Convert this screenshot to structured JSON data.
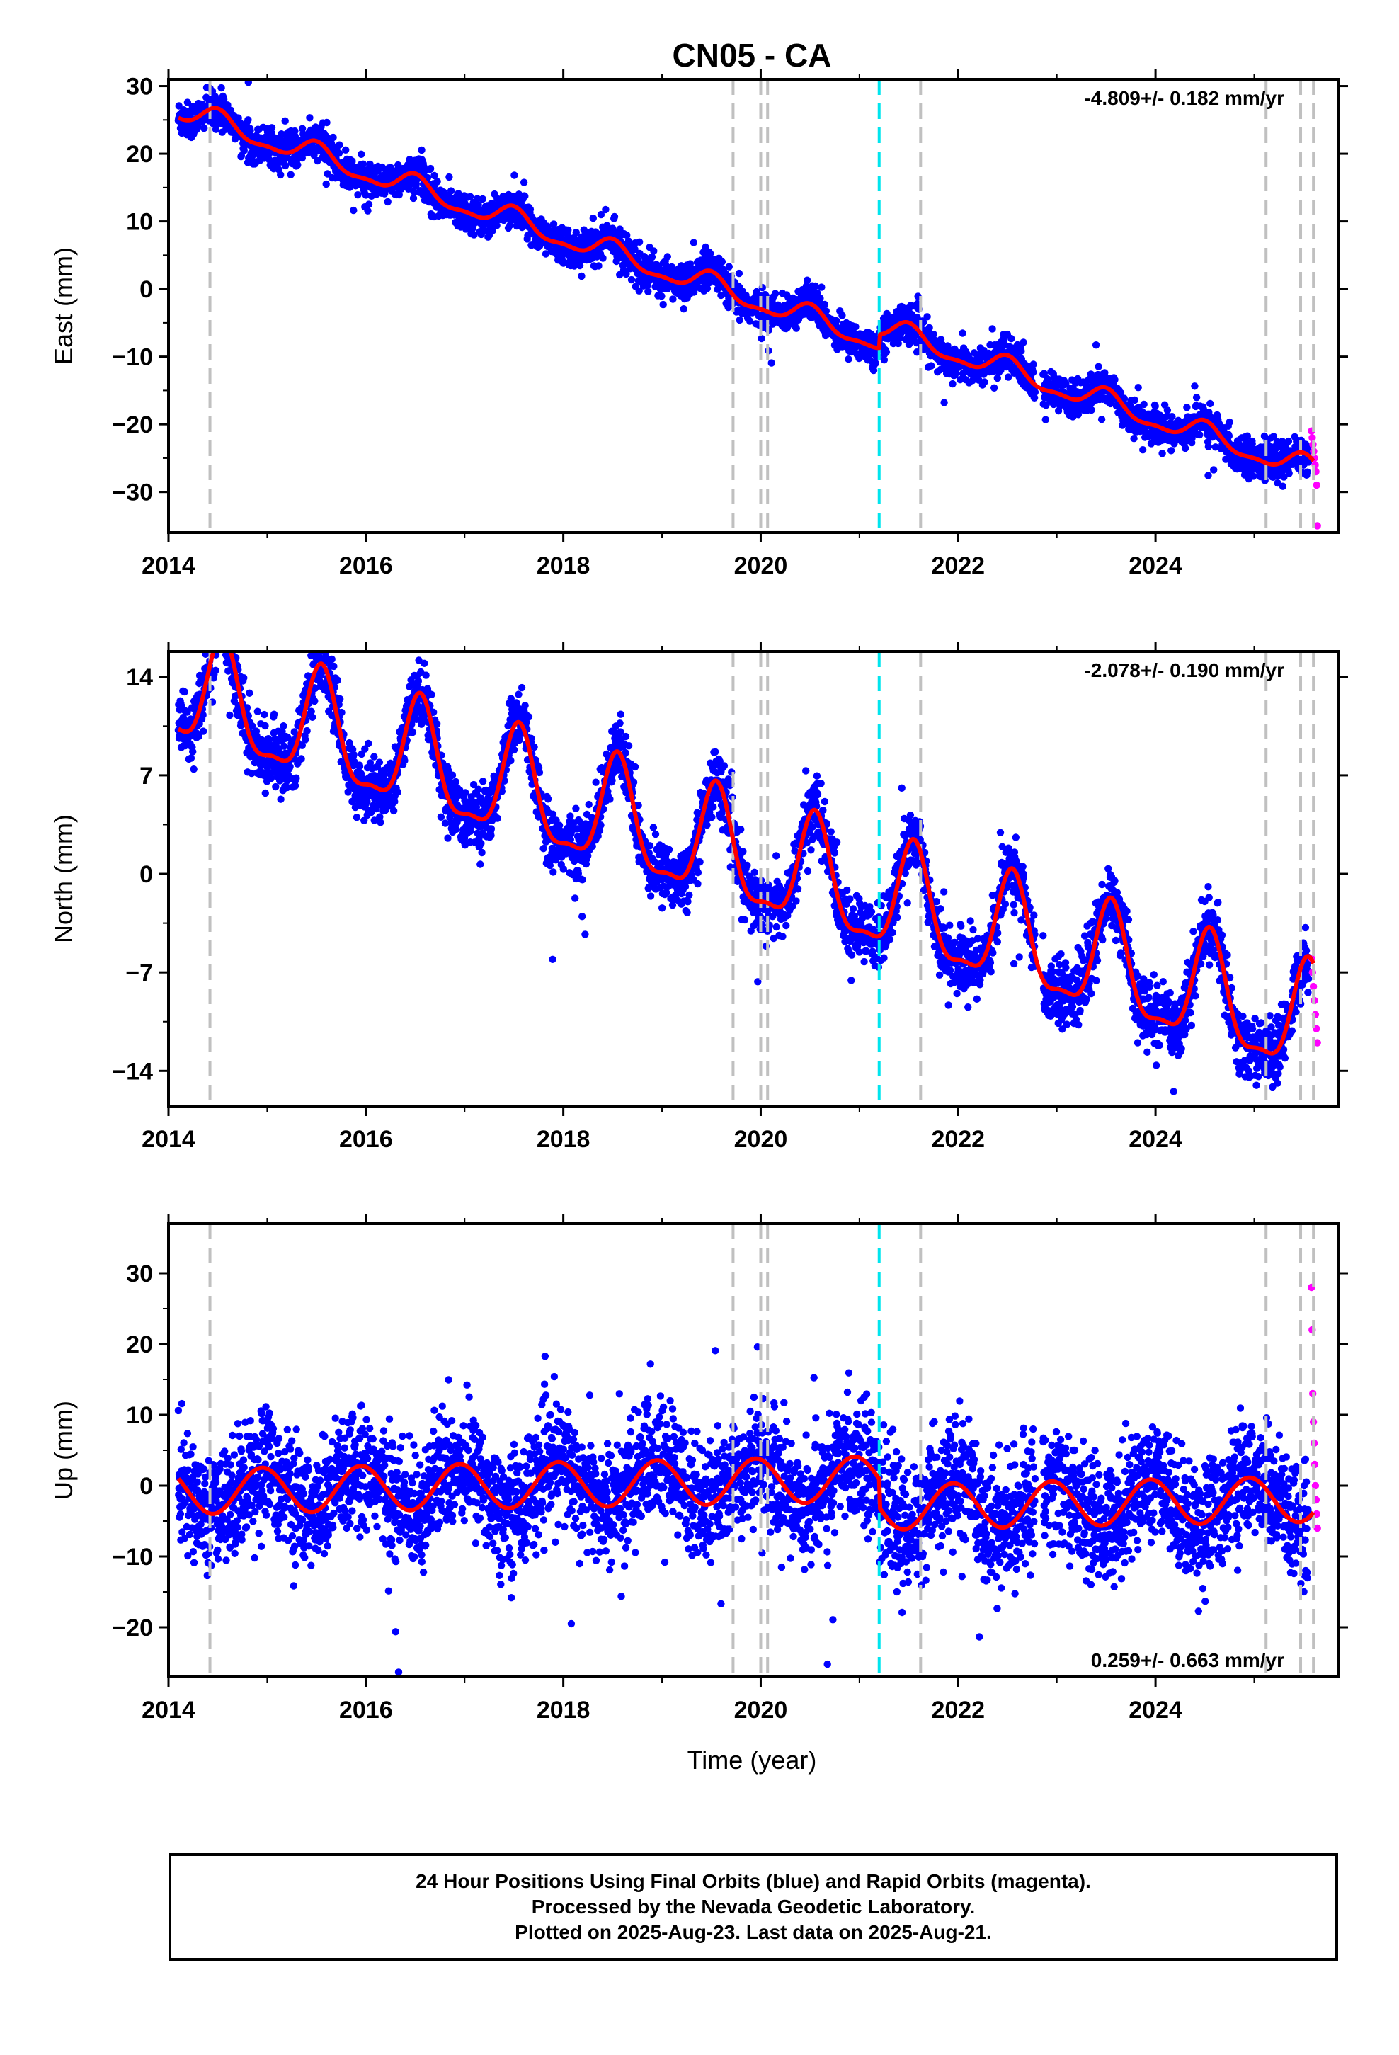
{
  "title": "CN05 - CA",
  "xlabel": "Time (year)",
  "footer": {
    "line1": "24 Hour Positions Using Final Orbits (blue) and Rapid Orbits (magenta).",
    "line2": "Processed by the Nevada Geodetic Laboratory.",
    "line3": "Plotted on 2025-Aug-23. Last data on 2025-Aug-21."
  },
  "colors": {
    "final_orbits": "#0000ff",
    "rapid_orbits": "#ff00ff",
    "model_fit": "#ff0000",
    "equipment_change": "#c0c0c0",
    "earthquake": "#00e5ee"
  },
  "chart_data": [
    {
      "type": "scatter",
      "component": "east",
      "ylabel": "East (mm)",
      "rate_text": "-4.809+/- 0.182 mm/yr",
      "xlim": [
        2014.0,
        2025.85
      ],
      "ylim": [
        -36,
        31
      ],
      "yticks": [
        30,
        20,
        10,
        0,
        -10,
        -20,
        -30
      ],
      "xticks": [
        2014,
        2016,
        2018,
        2020,
        2022,
        2024
      ],
      "xtick_labels": [
        "2014",
        "2016",
        "2018",
        "2020",
        "2022",
        "2024"
      ],
      "model": {
        "start": 2014.1,
        "end": 2025.6,
        "slope": -4.809,
        "ref_year": 2014.1,
        "ref_value": 25.3,
        "annual_amp": 1.6,
        "annual_phase_year": 2014.5,
        "semiannual_amp": 0.6,
        "offsets": [
          {
            "year": 2021.2,
            "value": 2.0
          }
        ]
      },
      "scatter_noise_mm": 1.3,
      "final_end": 2025.55,
      "rapid_range": [
        2025.58,
        2025.64
      ],
      "rapid_values": [
        -21,
        -22,
        -23,
        -24,
        -25,
        -26,
        -27,
        -29,
        -35
      ],
      "equipment_changes": [
        2014.42,
        2019.72,
        2020.0,
        2020.07,
        2021.62,
        2025.12,
        2025.47,
        2025.6
      ],
      "earthquakes": [
        2021.2
      ]
    },
    {
      "type": "scatter",
      "component": "north",
      "ylabel": "North (mm)",
      "rate_text": "-2.078+/- 0.190 mm/yr",
      "xlim": [
        2014.0,
        2025.85
      ],
      "ylim": [
        -16.5,
        15.8
      ],
      "yticks": [
        14,
        7,
        0,
        -7,
        -14
      ],
      "xticks": [
        2014,
        2016,
        2018,
        2020,
        2022,
        2024
      ],
      "xtick_labels": [
        "2014",
        "2016",
        "2018",
        "2020",
        "2022",
        "2024"
      ],
      "model": {
        "start": 2014.1,
        "end": 2025.6,
        "slope": -2.078,
        "ref_year": 2014.1,
        "ref_value": 10.3,
        "annual_amp": 3.8,
        "annual_phase_year": 2014.55,
        "semiannual_amp": 1.2,
        "offsets": []
      },
      "scatter_noise_mm": 1.1,
      "final_end": 2025.55,
      "rapid_range": [
        2025.58,
        2025.64
      ],
      "rapid_values": [
        -6,
        -7,
        -8,
        -9,
        -10,
        -11,
        -12
      ],
      "equipment_changes": [
        2014.42,
        2019.72,
        2020.0,
        2020.07,
        2021.62,
        2025.12,
        2025.47,
        2025.6
      ],
      "earthquakes": [
        2021.2
      ]
    },
    {
      "type": "scatter",
      "component": "up",
      "ylabel": "Up (mm)",
      "rate_text": "0.259+/- 0.663 mm/yr",
      "xlim": [
        2014.0,
        2025.85
      ],
      "ylim": [
        -27,
        37
      ],
      "yticks": [
        30,
        20,
        10,
        0,
        -10,
        -20
      ],
      "xticks": [
        2014,
        2016,
        2018,
        2020,
        2022,
        2024
      ],
      "xtick_labels": [
        "2014",
        "2016",
        "2018",
        "2020",
        "2022",
        "2024"
      ],
      "model": {
        "start": 2014.1,
        "end": 2025.6,
        "slope": 0.259,
        "ref_year": 2014.1,
        "ref_value": 1.0,
        "annual_amp": 3.2,
        "annual_phase_year": 2014.95,
        "semiannual_amp": 0.0,
        "offsets": [
          {
            "year": 2021.2,
            "value": -4.0
          }
        ]
      },
      "scatter_noise_mm": 4.2,
      "final_end": 2025.55,
      "rapid_range": [
        2025.58,
        2025.64
      ],
      "rapid_values": [
        28,
        22,
        13,
        9,
        6,
        3,
        0,
        -2,
        -4,
        -6
      ],
      "equipment_changes": [
        2014.42,
        2019.72,
        2020.0,
        2020.07,
        2021.62,
        2025.12,
        2025.47,
        2025.6
      ],
      "earthquakes": [
        2021.2
      ]
    }
  ]
}
